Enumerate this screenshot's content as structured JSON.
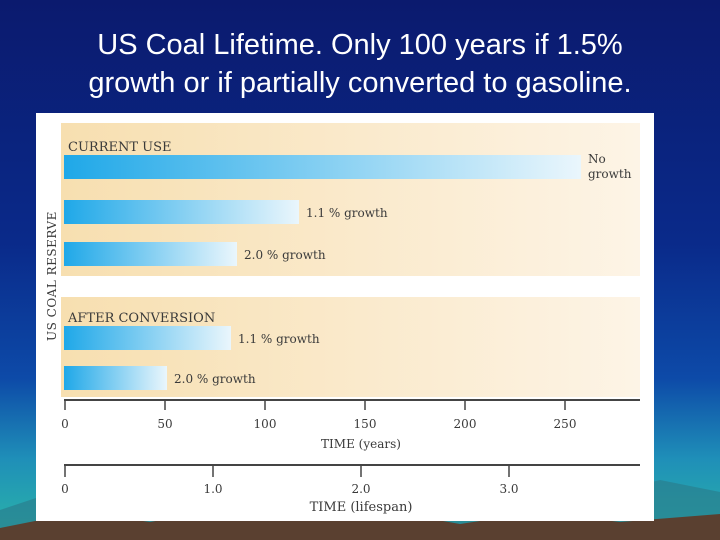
{
  "slide": {
    "title_line1": "US Coal Lifetime.  Only 100 years if 1.5%",
    "title_line2": "growth or if partially converted to gasoline."
  },
  "chart_data": {
    "type": "bar",
    "orientation": "horizontal",
    "ylabel": "US COAL RESERVE",
    "groups": [
      {
        "label": "CURRENT USE",
        "bars": [
          {
            "label_lines": [
              "No",
              "growth"
            ],
            "value": 258
          },
          {
            "label_lines": [
              "1.1 % growth"
            ],
            "value": 117
          },
          {
            "label_lines": [
              "2.0 % growth"
            ],
            "value": 86
          }
        ]
      },
      {
        "label": "AFTER CONVERSION",
        "bars": [
          {
            "label_lines": [
              "1.1 % growth"
            ],
            "value": 83
          },
          {
            "label_lines": [
              "2.0 % growth"
            ],
            "value": 51
          }
        ]
      }
    ],
    "x_axis": {
      "label": "TIME (years)",
      "ticks": [
        0,
        50,
        100,
        150,
        200,
        250
      ],
      "tick_labels": [
        "0",
        "50",
        "100",
        "150",
        "200",
        "250"
      ],
      "range": [
        0,
        290
      ]
    },
    "x_axis_2": {
      "label": "TIME (lifespan)",
      "ticks": [
        0,
        1.0,
        2.0,
        3.0
      ],
      "tick_labels": [
        "0",
        "1.0",
        "2.0",
        "3.0"
      ],
      "range": [
        0,
        3.9
      ]
    },
    "colors": {
      "bar_dark": "#1fa8e8",
      "bar_light": "#eaf6fc",
      "panel_left": "#f7dfb0",
      "panel_right": "#fdf4e6"
    }
  }
}
